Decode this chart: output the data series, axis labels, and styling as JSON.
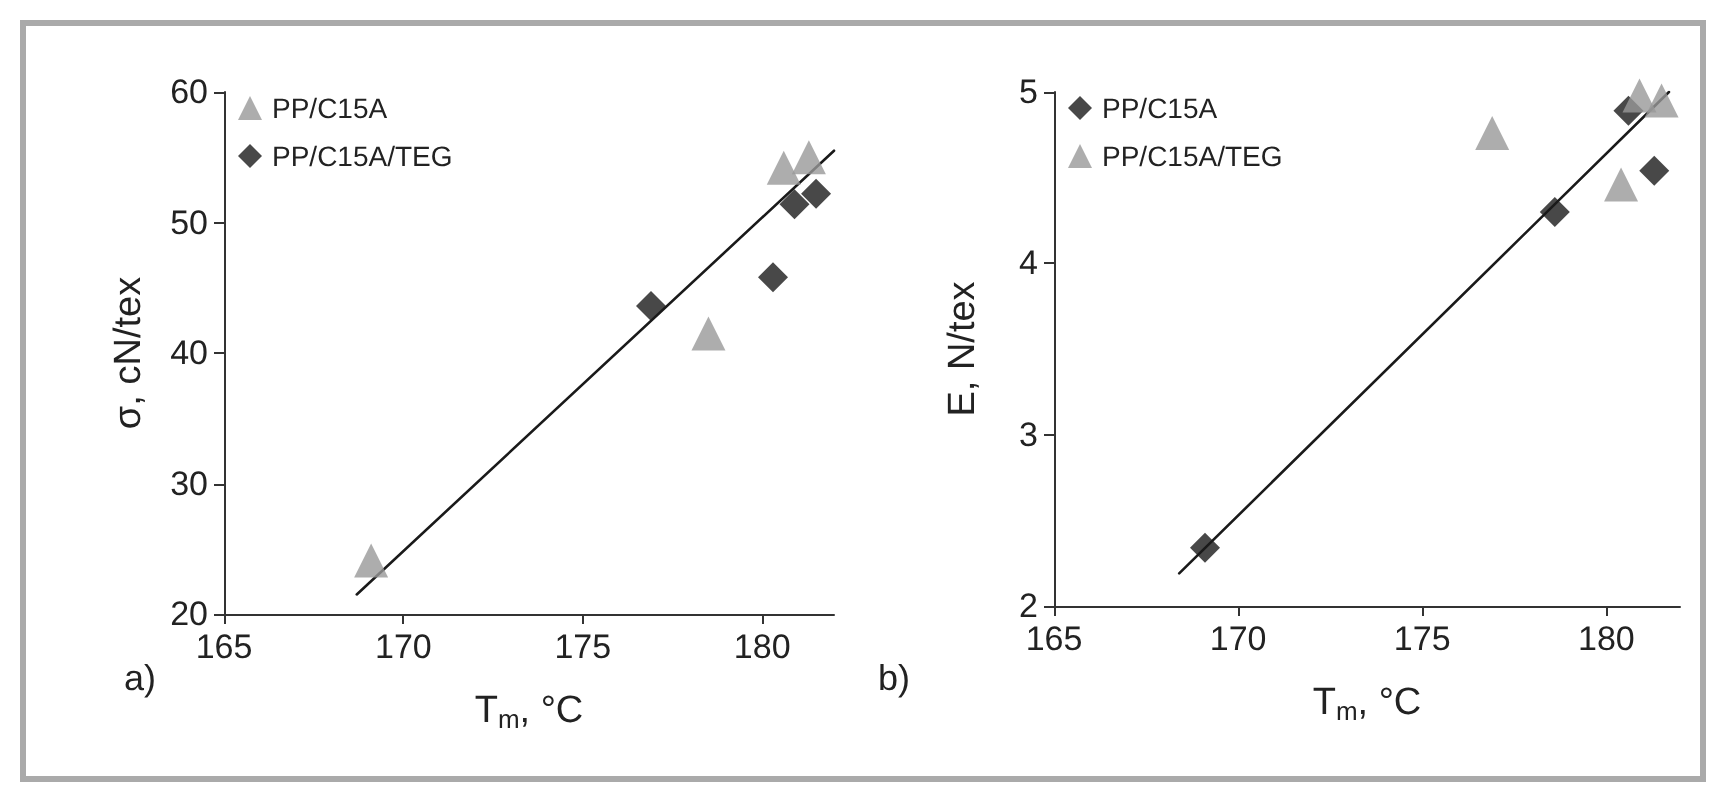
{
  "chart_data": [
    {
      "type": "scatter",
      "xlabel": "T$_{m}$, °C",
      "ylabel": "σ, cN/tex",
      "xlim": [
        165,
        182
      ],
      "xticks": [
        165,
        170,
        175,
        180
      ],
      "ylim": [
        20,
        60
      ],
      "yticks": [
        20,
        30,
        40,
        50,
        60
      ],
      "grid": false,
      "legend": "top left",
      "annotations": [
        "a)"
      ],
      "series": [
        {
          "name": "PP/C15A",
          "color": "#999999",
          "marker": "triangle",
          "x": [
            169.1,
            178.5,
            180.6,
            181.3
          ],
          "values": [
            24.1,
            41.5,
            54.2,
            55.0
          ]
        },
        {
          "name": "PP/C15A/TEG",
          "color": "#1a1a1a",
          "marker": "diamond",
          "x": [
            176.9,
            180.3,
            180.9,
            181.5
          ],
          "values": [
            43.6,
            45.8,
            51.4,
            52.2
          ]
        },
        {
          "type": "line",
          "color": "#1a1a1a",
          "marker": "none",
          "x": [
            168.7,
            182
          ],
          "values": [
            21.5,
            55.5
          ]
        }
      ]
    },
    {
      "type": "scatter",
      "xlabel": "T$_{m}$, °C",
      "ylabel": "E, N/tex",
      "xlim": [
        165,
        182
      ],
      "xticks": [
        165,
        170,
        175,
        180
      ],
      "ylim": [
        2,
        5
      ],
      "yticks": [
        2,
        3,
        4,
        5
      ],
      "grid": false,
      "legend": "top left",
      "annotations": [
        "b)"
      ],
      "series": [
        {
          "name": "PP/C15A",
          "color": "#1a1a1a",
          "marker": "diamond",
          "x": [
            169.1,
            178.6,
            180.6,
            181.3
          ],
          "values": [
            2.34,
            4.3,
            4.89,
            4.54
          ]
        },
        {
          "name": "PP/C15A/TEG",
          "color": "#999999",
          "marker": "triangle",
          "x": [
            176.9,
            180.4,
            180.9,
            181.5
          ],
          "values": [
            4.76,
            4.46,
            4.98,
            4.95
          ]
        },
        {
          "type": "line",
          "color": "#1a1a1a",
          "marker": "none",
          "x": [
            168.4,
            181.7
          ],
          "values": [
            2.19,
            5.0
          ]
        }
      ]
    }
  ]
}
